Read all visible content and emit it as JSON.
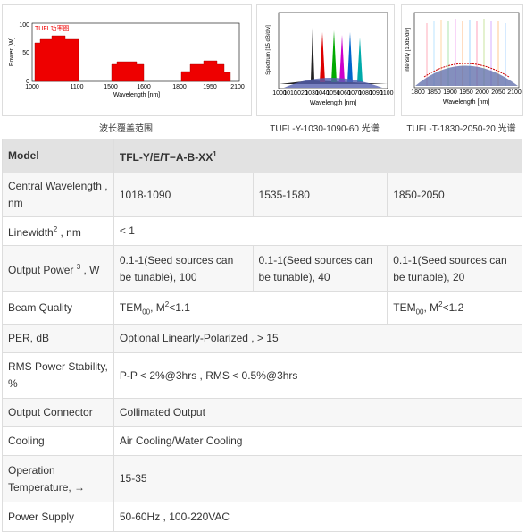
{
  "figures": [
    {
      "caption": "波长覆盖范围",
      "chart": {
        "legend": "TUFL功率图",
        "ylabel": "Power [W]",
        "yticks": [
          "0",
          "50",
          "100"
        ],
        "xticks": [
          "1000",
          "1100",
          "1500",
          "1600",
          "1800",
          "1950",
          "2100"
        ],
        "xlabel": "Wavelength [nm]"
      }
    },
    {
      "caption": "TUFL-Y-1030-1090-60 光谱",
      "chart": {
        "ylabel": "Spectrum [15 dB/div]",
        "xticks": [
          "1000",
          "1010",
          "1020",
          "1030",
          "1040",
          "1050",
          "1060",
          "1070",
          "1080",
          "1090",
          "1100"
        ],
        "xlabel": "Wavelength [nm]"
      }
    },
    {
      "caption": "TUFL-T-1830-2050-20 光谱",
      "chart": {
        "ylabel": "Intensity [10dB/div]",
        "xticks": [
          "1800",
          "1850",
          "1900",
          "1950",
          "2000",
          "2050",
          "2100"
        ],
        "xlabel": "Wavelength [nm]"
      }
    }
  ],
  "table": {
    "header": {
      "label": "Model",
      "value": [
        "TFL-Y/E/T−A-B-XX",
        "1"
      ]
    },
    "rows": [
      {
        "label": [
          "Central Wavelength , nm"
        ],
        "cells": [
          "1018-1090",
          "1535-1580",
          "1850-2050"
        ]
      },
      {
        "label": [
          "Linewidth",
          "2",
          " , nm"
        ],
        "cells": [
          "< 1"
        ]
      },
      {
        "label": [
          "Output Power ",
          "3",
          " , W"
        ],
        "cells": [
          "0.1-1(Seed sources can be tunable), 100",
          "0.1-1(Seed sources can be tunable), 40",
          "0.1-1(Seed sources can be tunable), 20"
        ]
      },
      {
        "label": [
          "Beam Quality"
        ],
        "cells": [
          [
            "TEM",
            "00",
            ", M",
            "2",
            "<1.1"
          ],
          [
            "TEM",
            "00",
            ", M",
            "2",
            "<1.2"
          ]
        ]
      },
      {
        "label": [
          "PER, dB"
        ],
        "cells": [
          "Optional Linearly-Polarized , > 15"
        ]
      },
      {
        "label": [
          "RMS Power Stability, %"
        ],
        "cells": [
          "P-P < 2%@3hrs , RMS < 0.5%@3hrs"
        ]
      },
      {
        "label": [
          "Output Connector"
        ],
        "cells": [
          "Collimated Output"
        ]
      },
      {
        "label": [
          "Cooling"
        ],
        "cells": [
          "Air Cooling/Water Cooling"
        ]
      },
      {
        "label": [
          "Operation Temperature, →"
        ],
        "cells": [
          "15-35"
        ]
      },
      {
        "label": [
          "Power Supply"
        ],
        "cells": [
          "50-60Hz , 100-220VAC"
        ]
      }
    ]
  }
}
